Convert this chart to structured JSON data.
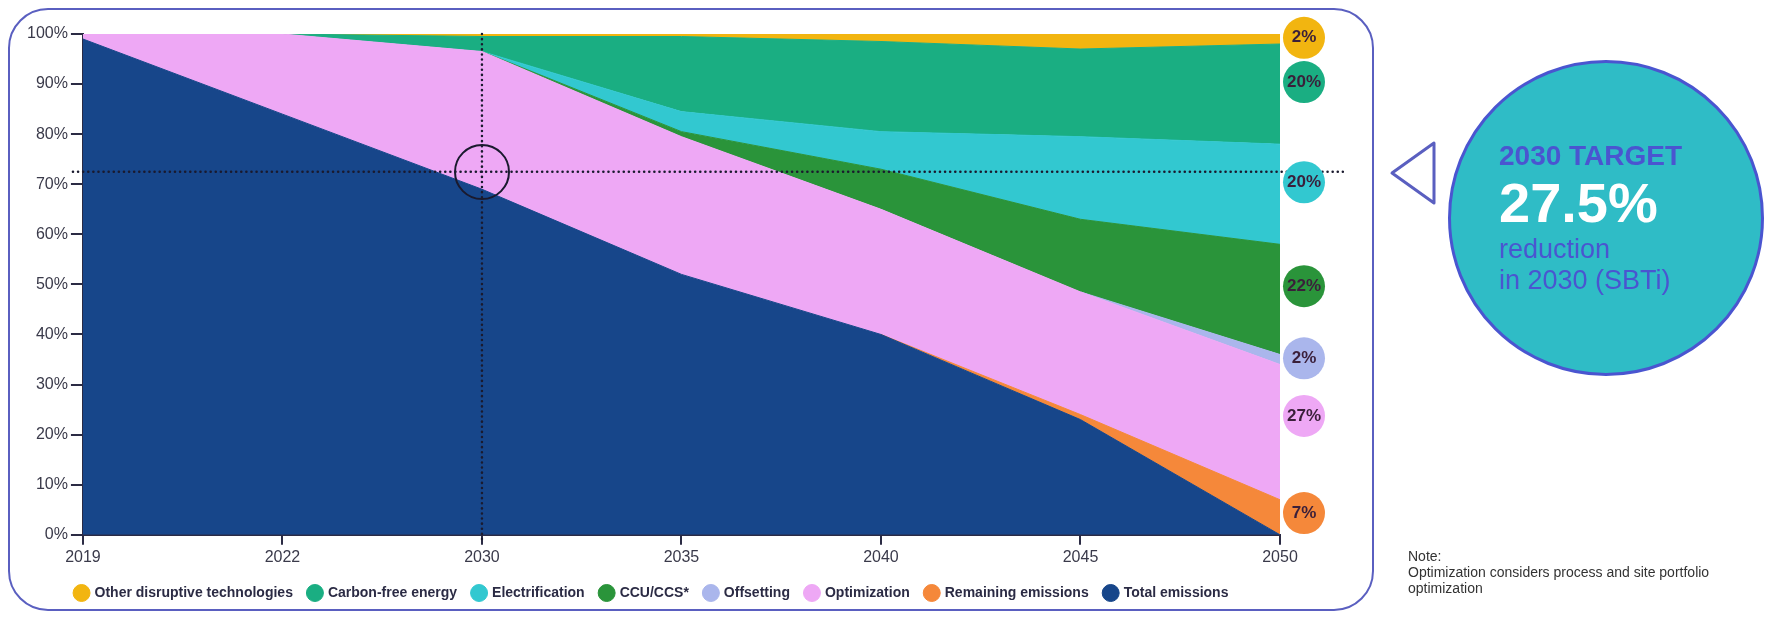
{
  "chart_data": {
    "type": "area",
    "stacked": true,
    "categories": [
      "2019",
      "2022",
      "2030",
      "2035",
      "2040",
      "2045",
      "2050"
    ],
    "series": [
      {
        "name": "Total emissions",
        "color": "#17468a",
        "values": [
          99,
          84,
          69,
          52,
          40,
          23,
          0
        ]
      },
      {
        "name": "Remaining emissions",
        "color": "#f5883a",
        "values": [
          null,
          null,
          null,
          null,
          0,
          1,
          7
        ],
        "value_labels": [
          null,
          null,
          null,
          null,
          null,
          null,
          "7%"
        ]
      },
      {
        "name": "Optimization",
        "color": "#eea8f5",
        "values": [
          1,
          16,
          27.5,
          27.5,
          25,
          24.5,
          27
        ],
        "value_labels": [
          null,
          null,
          null,
          null,
          null,
          null,
          "27%"
        ]
      },
      {
        "name": "Offsetting",
        "color": "#aab6ec",
        "values": [
          null,
          null,
          null,
          null,
          null,
          0,
          2
        ],
        "value_labels": [
          null,
          null,
          null,
          null,
          null,
          null,
          "2%"
        ]
      },
      {
        "name": "CCU/CCS*",
        "color": "#2a943a",
        "values": [
          null,
          null,
          0,
          1,
          8,
          14.5,
          22
        ],
        "value_labels": [
          null,
          null,
          null,
          null,
          null,
          null,
          "22%"
        ]
      },
      {
        "name": "Electrification",
        "color": "#32c8d0",
        "values": [
          null,
          null,
          0,
          4,
          7.5,
          16.5,
          20
        ],
        "value_labels": [
          null,
          null,
          null,
          null,
          null,
          null,
          "20%"
        ]
      },
      {
        "name": "Carbon-free energy",
        "color": "#1aae82",
        "values": [
          null,
          0,
          3,
          15,
          18,
          17.5,
          20
        ],
        "value_labels": [
          null,
          null,
          null,
          null,
          null,
          null,
          "20%"
        ]
      },
      {
        "name": "Other disruptive technologies",
        "color": "#f2b510",
        "values": [
          null,
          0,
          0.5,
          0.5,
          1.5,
          3,
          2
        ],
        "value_labels": [
          null,
          null,
          null,
          null,
          null,
          null,
          "2%"
        ]
      }
    ],
    "ylim": [
      0,
      100
    ],
    "yticks": [
      {
        "value": 0,
        "label": "0%"
      },
      {
        "value": 10,
        "label": "10%"
      },
      {
        "value": 20,
        "label": "20%"
      },
      {
        "value": 30,
        "label": "30%"
      },
      {
        "value": 40,
        "label": "40%"
      },
      {
        "value": 50,
        "label": "50%"
      },
      {
        "value": 60,
        "label": "60%"
      },
      {
        "value": 70,
        "label": "70%"
      },
      {
        "value": 80,
        "label": "80%"
      },
      {
        "value": 90,
        "label": "90%"
      },
      {
        "value": 100,
        "label": "100%"
      }
    ],
    "ref_lines": [
      {
        "axis": "y",
        "value": 72.5,
        "color": "#1a1a2e",
        "line_style": "dotted"
      },
      {
        "axis": "x",
        "value": "2030",
        "color": "#1a1a2e",
        "line_style": "dotted"
      }
    ],
    "annotations": [
      "2030 TARGET",
      "27.5%",
      "reduction\nin 2030 (SBTi)",
      "Note:\nOptimization considers process and site portfolio optimization"
    ],
    "grid": false,
    "legend": "bottom",
    "marker": "none"
  }
}
